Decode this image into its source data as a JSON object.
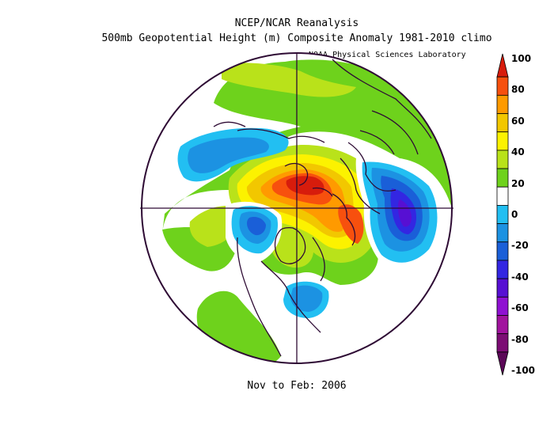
{
  "header": {
    "title": "NCEP/NCAR Reanalysis",
    "subtitle": "500mb Geopotential Height (m) Composite Anomaly 1981-2010 climo",
    "credit": "NOAA Physical Sciences Laboratory"
  },
  "footer": {
    "period": "Nov to Feb: 2006"
  },
  "colorbar": {
    "labels": [
      "100",
      "80",
      "60",
      "40",
      "20",
      "0",
      "-20",
      "-40",
      "-60",
      "-80",
      "-100"
    ],
    "colors": [
      "#d71c0c",
      "#f7500e",
      "#ff9a00",
      "#f2c700",
      "#fcf200",
      "#b9e21a",
      "#6ed21c",
      "#ffffff",
      "#22bff2",
      "#1c92e2",
      "#1a5fd8",
      "#3326e2",
      "#5710d3",
      "#8f11d2",
      "#a1139e",
      "#7c0d74",
      "#5b0757"
    ]
  },
  "map": {
    "projection": "polar-stereographic-north",
    "land_color": "#2e0b34",
    "anomaly_fields": [
      {
        "id": "pole-ridge",
        "sign": "positive",
        "peak": 100
      },
      {
        "id": "scandinavia-ridge",
        "sign": "positive",
        "peak": 80
      },
      {
        "id": "east-asia-trough",
        "sign": "negative",
        "peak": -60
      },
      {
        "id": "west-pacific-trough",
        "sign": "negative",
        "peak": -30
      },
      {
        "id": "alaska-trough",
        "sign": "negative",
        "peak": -30
      },
      {
        "id": "atlantic-trough",
        "sign": "negative",
        "peak": -20
      }
    ]
  }
}
